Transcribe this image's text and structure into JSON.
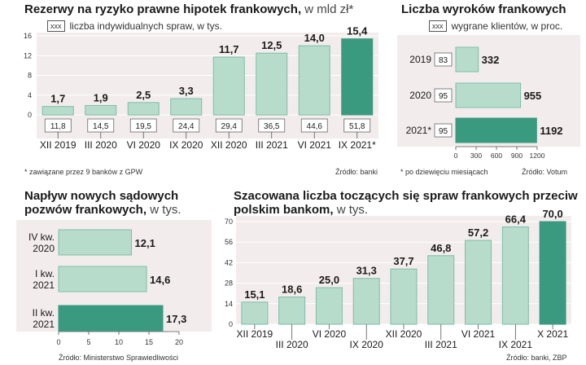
{
  "colors": {
    "bg": "#f3ecec",
    "bar": "#b7dccc",
    "bar_highlight": "#3a9a7f",
    "bar_stroke": "#7dbfa7"
  },
  "chart_data": [
    {
      "type": "bar",
      "title": "Rezerwy na ryzyko prawne hipotek frankowych,",
      "title_unit": "w mld zł*",
      "legend_box": "xxx",
      "legend_text": "liczba indywidualnych spraw, w tys.",
      "categories": [
        "XII 2019",
        "III 2020",
        "VI 2020",
        "IX 2020",
        "XII 2020",
        "III 2021",
        "VI 2021",
        "IX 2021*"
      ],
      "values": [
        1.7,
        1.9,
        2.5,
        3.3,
        11.7,
        12.5,
        14.0,
        15.4
      ],
      "value_labels": [
        "1,7",
        "1,9",
        "2,5",
        "3,3",
        "11,7",
        "12,5",
        "14,0",
        "15,4"
      ],
      "secondary_labels": [
        "11,8",
        "14,5",
        "19,5",
        "24,4",
        "29,4",
        "36,5",
        "44,6",
        "51,8"
      ],
      "yticks": [
        "16",
        "12",
        "8",
        "4",
        "0"
      ],
      "ylim": [
        0,
        16
      ],
      "highlight_index": 7,
      "footnote": "* zawiązane przez 9 banków z GPW",
      "source": "Źródło: banki"
    },
    {
      "type": "bar",
      "orientation": "horizontal",
      "title": "Liczba wyroków frankowych",
      "legend_box": "xxx",
      "legend_text": "wygrane klientów, w proc.",
      "categories": [
        "2019",
        "2020",
        "2021*"
      ],
      "values": [
        332,
        955,
        1192
      ],
      "value_labels": [
        "332",
        "955",
        "1192"
      ],
      "secondary_labels": [
        "83",
        "95",
        "95"
      ],
      "xticks": [
        "0",
        "300",
        "600",
        "900",
        "1200"
      ],
      "xlim": [
        0,
        1200
      ],
      "highlight_index": 2,
      "footnote": "* po dziewięciu miesiącach",
      "source": "Źródło: Votum"
    },
    {
      "type": "bar",
      "orientation": "horizontal",
      "title_line1": "Napływ nowych sądowych",
      "title_line2": "pozwów frankowych,",
      "title_unit": "w tys.",
      "categories": [
        [
          "IV kw.",
          "2020"
        ],
        [
          "I kw.",
          "2021"
        ],
        [
          "II kw.",
          "2021"
        ]
      ],
      "values": [
        12.1,
        14.6,
        17.3
      ],
      "value_labels": [
        "12,1",
        "14,6",
        "17,3"
      ],
      "xticks": [
        "0",
        "5",
        "10",
        "15",
        "20"
      ],
      "xlim": [
        0,
        20
      ],
      "highlight_index": 2,
      "source": "Źródło: Ministerstwo Sprawiedliwości"
    },
    {
      "type": "bar",
      "title_line1": "Szacowana liczba toczących się spraw frankowych przeciw",
      "title_line2": "polskim bankom,",
      "title_unit": "w tys.",
      "categories": [
        "XII 2019",
        "III 2020",
        "VI 2020",
        "IX 2020",
        "XII 2020",
        "III 2021",
        "VI 2021",
        "IX 2021",
        "X 2021"
      ],
      "values": [
        15.1,
        18.6,
        25.0,
        31.3,
        37.7,
        46.8,
        57.2,
        66.4,
        70.0
      ],
      "value_labels": [
        "15,1",
        "18,6",
        "25,0",
        "31,3",
        "37,7",
        "46,8",
        "57,2",
        "66,4",
        "70,0"
      ],
      "yticks": [
        "70",
        "56",
        "42",
        "28",
        "14",
        "0"
      ],
      "ylim": [
        0,
        70
      ],
      "highlight_index": 8,
      "source": "Źródło: banki, ZBP"
    }
  ]
}
